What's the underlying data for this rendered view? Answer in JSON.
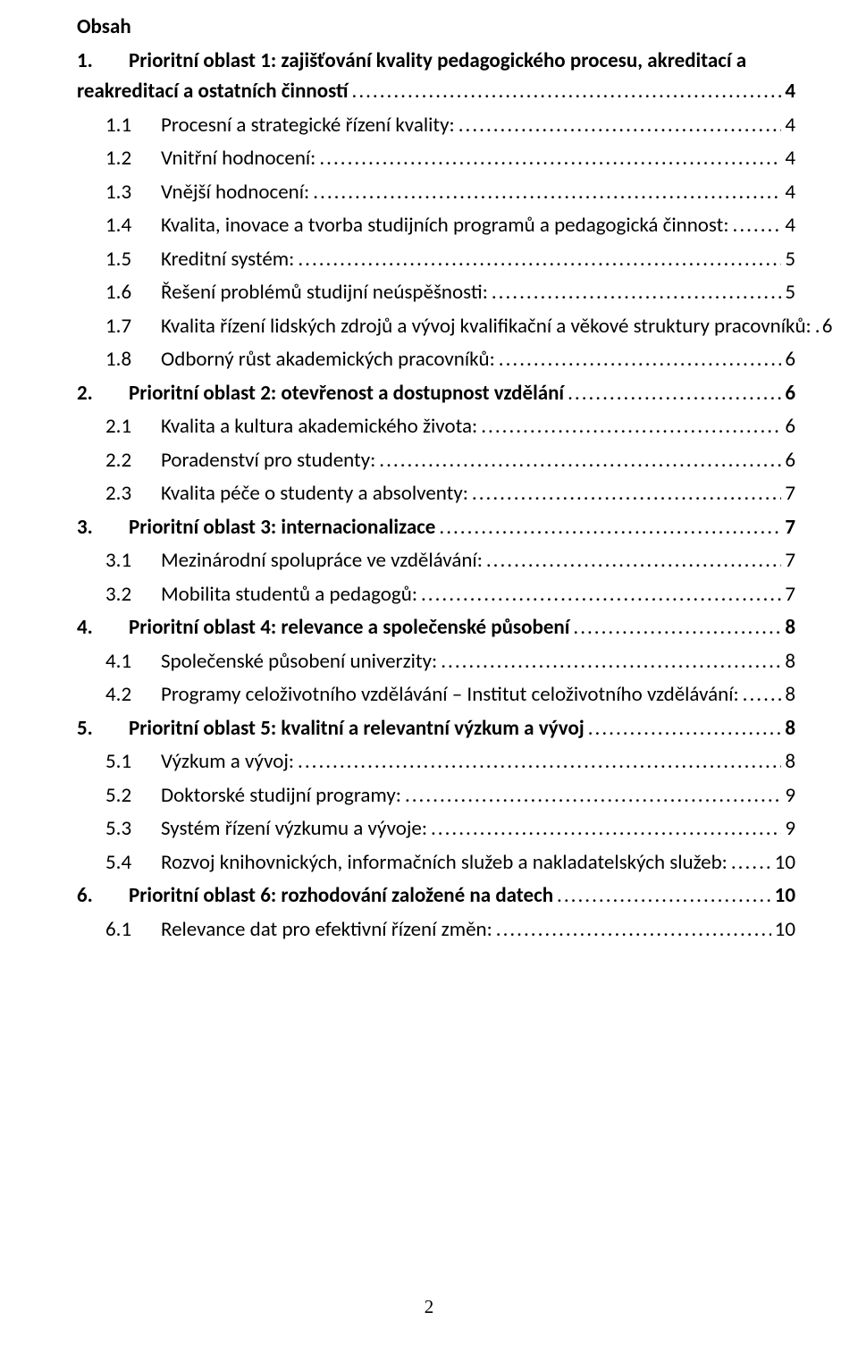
{
  "colors": {
    "text": "#000000",
    "background": "#ffffff"
  },
  "typography": {
    "font_family": "Calibri",
    "base_fontsize_pt": 12,
    "heading_bold": true,
    "level1_bold": true
  },
  "heading": "Obsah",
  "page_number": "2",
  "toc": [
    {
      "level": 1,
      "num": "1.",
      "title_line1": "Prioritní oblast 1: zajišťování kvality pedagogického procesu, akreditací a",
      "title_line2": "reakreditací a ostatních činností",
      "page": "4",
      "multiline": true
    },
    {
      "level": 2,
      "num": "1.1",
      "title": "Procesní a strategické řízení kvality:",
      "page": "4"
    },
    {
      "level": 2,
      "num": "1.2",
      "title": "Vnitřní hodnocení:",
      "page": "4"
    },
    {
      "level": 2,
      "num": "1.3",
      "title": "Vnější hodnocení:",
      "page": "4"
    },
    {
      "level": 2,
      "num": "1.4",
      "title": "Kvalita, inovace a tvorba studijních programů a pedagogická činnost:",
      "page": "4"
    },
    {
      "level": 2,
      "num": "1.5",
      "title": "Kreditní systém:",
      "page": "5"
    },
    {
      "level": 2,
      "num": "1.6",
      "title": "Řešení problémů studijní neúspěšnosti:",
      "page": "5"
    },
    {
      "level": 2,
      "num": "1.7",
      "title": "Kvalita řízení lidských zdrojů a vývoj kvalifikační a věkové struktury pracovníků:",
      "page": "6"
    },
    {
      "level": 2,
      "num": "1.8",
      "title": "Odborný růst akademických pracovníků:",
      "page": "6"
    },
    {
      "level": 1,
      "num": "2.",
      "title": "Prioritní oblast 2: otevřenost a dostupnost vzdělání",
      "page": "6"
    },
    {
      "level": 2,
      "num": "2.1",
      "title": "Kvalita a kultura akademického života:",
      "page": "6"
    },
    {
      "level": 2,
      "num": "2.2",
      "title": "Poradenství pro studenty:",
      "page": "6"
    },
    {
      "level": 2,
      "num": "2.3",
      "title": "Kvalita péče o studenty a absolventy:",
      "page": "7"
    },
    {
      "level": 1,
      "num": "3.",
      "title": "Prioritní oblast 3: internacionalizace",
      "page": "7"
    },
    {
      "level": 2,
      "num": "3.1",
      "title": "Mezinárodní spolupráce ve vzdělávání:",
      "page": "7"
    },
    {
      "level": 2,
      "num": "3.2",
      "title": "Mobilita studentů a pedagogů:",
      "page": "7"
    },
    {
      "level": 1,
      "num": "4.",
      "title": "Prioritní oblast 4: relevance a společenské působení",
      "page": "8"
    },
    {
      "level": 2,
      "num": "4.1",
      "title": "Společenské působení univerzity:",
      "page": "8"
    },
    {
      "level": 2,
      "num": "4.2",
      "title": "Programy celoživotního vzdělávání – Institut celoživotního vzdělávání:",
      "page": "8"
    },
    {
      "level": 1,
      "num": "5.",
      "title": "Prioritní oblast 5: kvalitní a relevantní výzkum a vývoj",
      "page": "8"
    },
    {
      "level": 2,
      "num": "5.1",
      "title": "Výzkum a vývoj:",
      "page": "8"
    },
    {
      "level": 2,
      "num": "5.2",
      "title": "Doktorské studijní programy:",
      "page": "9"
    },
    {
      "level": 2,
      "num": "5.3",
      "title": "Systém řízení výzkumu a vývoje:",
      "page": "9"
    },
    {
      "level": 2,
      "num": "5.4",
      "title": "Rozvoj knihovnických, informačních služeb  a nakladatelských služeb:",
      "page": "10"
    },
    {
      "level": 1,
      "num": "6.",
      "title": "Prioritní oblast 6: rozhodování založené na datech",
      "page": "10"
    },
    {
      "level": 2,
      "num": "6.1",
      "title": "Relevance dat pro efektivní řízení změn:",
      "page": "10"
    }
  ]
}
